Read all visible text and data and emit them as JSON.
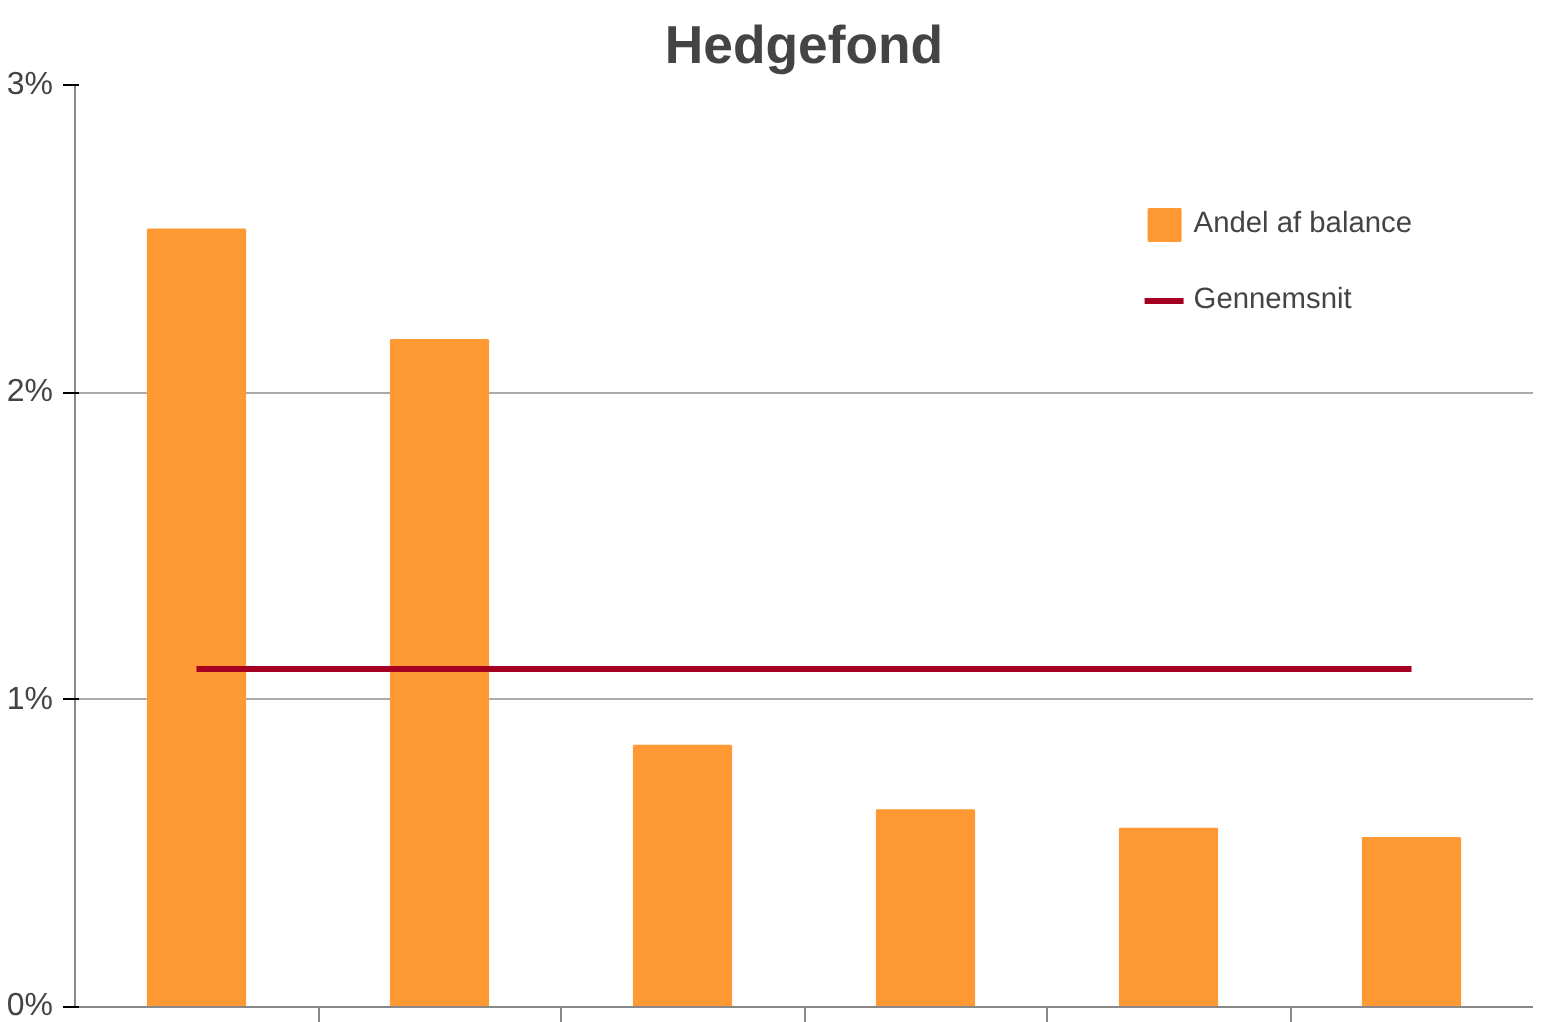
{
  "chart_data": {
    "type": "bar",
    "title": "Hedgefond",
    "categories": [
      null,
      null,
      null,
      null,
      null,
      null
    ],
    "series": [
      {
        "name": "Andel af balance",
        "color": "#ff9933",
        "values": [
          2.53,
          2.17,
          0.85,
          0.64,
          0.58,
          0.55
        ]
      },
      {
        "name": "Gennemsnit",
        "type": "line",
        "color": "#a50021",
        "values": [
          1.1,
          1.1,
          1.1,
          1.1,
          1.1,
          1.1
        ]
      }
    ],
    "ylim": [
      0,
      3
    ],
    "yticks": [
      {
        "value": 0,
        "label": "0%"
      },
      {
        "value": 1,
        "label": "1%"
      },
      {
        "value": 2,
        "label": "2%"
      },
      {
        "value": 3,
        "label": "3%"
      }
    ],
    "grid": "y",
    "legend": "top right",
    "tick_labels": "y"
  }
}
